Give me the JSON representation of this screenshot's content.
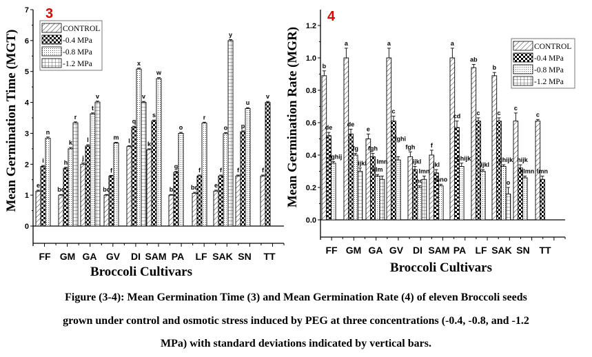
{
  "colors": {
    "panel_number": "#e00000",
    "ink": "#000000"
  },
  "chart_data": [
    {
      "type": "bar",
      "panel_number": "3",
      "title": "",
      "xlabel": "Broccoli Cultivars",
      "ylabel": "Mean Germination Time (MGT)",
      "ylim": [
        0,
        7
      ],
      "yticks": [
        "0",
        "1",
        "2",
        "3",
        "4",
        "5",
        "6",
        "7"
      ],
      "categories": [
        "FF",
        "GM",
        "GA",
        "GV",
        "DI",
        "SAM",
        "PA",
        "LF",
        "SAK",
        "SN",
        "TT"
      ],
      "legend": [
        "CONTROL",
        "-0.4 MPa",
        "-0.8 MPa",
        "-1.2 MPa"
      ],
      "legend_position": "top-left",
      "series": [
        {
          "name": "CONTROL",
          "values": [
            1.13,
            1.0,
            2.0,
            1.0,
            2.57,
            2.47,
            1.0,
            1.06,
            1.13,
            1.62,
            1.62
          ],
          "letters": [
            "e",
            "bc",
            "j",
            "bc",
            "l",
            "k",
            "b",
            "bd",
            "e",
            "f",
            "f"
          ],
          "sd": [
            0.03,
            0.02,
            0.04,
            0.02,
            0.03,
            0.03,
            0.02,
            0.03,
            0.03,
            0.03,
            0.03
          ]
        },
        {
          "name": "-0.4 MPa",
          "values": [
            1.93,
            1.87,
            2.59,
            1.62,
            3.2,
            3.4,
            1.74,
            1.62,
            1.62,
            3.05,
            4.0
          ],
          "letters": [
            "i",
            "h",
            "l",
            "f",
            "q",
            "s",
            "g",
            "f",
            "f",
            "p",
            "v"
          ],
          "sd": [
            0.03,
            0.03,
            0.04,
            0.02,
            0.03,
            0.03,
            0.03,
            0.03,
            0.03,
            0.03,
            0.03
          ]
        },
        {
          "name": "-0.8 MPa",
          "values": [
            2.84,
            2.5,
            3.63,
            2.69,
            5.08,
            4.77,
            3.0,
            3.33,
            2.99,
            3.8,
            null
          ],
          "letters": [
            "n",
            "k",
            "t",
            "m",
            "x",
            "w",
            "o",
            "r",
            "o",
            "u",
            null
          ],
          "sd": [
            0.04,
            0.04,
            0.03,
            0.02,
            0.03,
            0.03,
            0.03,
            0.03,
            0.03,
            0.03,
            null
          ]
        },
        {
          "name": "-1.2 MPa",
          "values": [
            null,
            3.34,
            4.01,
            null,
            4.0,
            null,
            null,
            null,
            6.0,
            null,
            null
          ],
          "letters": [
            null,
            "r",
            "v",
            null,
            "v",
            null,
            null,
            null,
            "y",
            null,
            null
          ],
          "sd": [
            null,
            0.03,
            0.03,
            null,
            0.03,
            null,
            null,
            null,
            0.03,
            null,
            null
          ]
        }
      ]
    },
    {
      "type": "bar",
      "panel_number": "4",
      "title": "",
      "xlabel": "Broccoli Cultivars",
      "ylabel": "Mean Germination Rate (MGR)",
      "ylim": [
        0,
        1.2
      ],
      "yticks": [
        "0.0",
        "0.2",
        "0.4",
        "0.6",
        "0.8",
        "1.0",
        "1.2"
      ],
      "categories": [
        "FF",
        "GM",
        "GA",
        "GV",
        "DI",
        "SAM",
        "PA",
        "LF",
        "SAK",
        "SN",
        "TT"
      ],
      "legend": [
        "CONTROL",
        "-0.4 MPa",
        "-0.8 MPa",
        "-1.2 MPa"
      ],
      "legend_position": "top-right",
      "series": [
        {
          "name": "CONTROL",
          "values": [
            0.89,
            1.0,
            0.5,
            1.0,
            0.39,
            0.4,
            1.0,
            0.94,
            0.89,
            0.61,
            0.61
          ],
          "letters": [
            "b",
            "a",
            "e",
            "a",
            "fgh",
            "f",
            "a",
            "ab",
            "b",
            "c",
            "c"
          ],
          "sd": [
            0.03,
            0.06,
            0.03,
            0.06,
            0.03,
            0.03,
            0.06,
            0.02,
            0.02,
            0.05,
            0.01
          ]
        },
        {
          "name": "-0.4 MPa",
          "values": [
            0.52,
            0.53,
            0.39,
            0.61,
            0.31,
            0.29,
            0.57,
            0.61,
            0.61,
            0.32,
            0.25
          ],
          "letters": [
            "de",
            "de",
            "fgh",
            "c",
            "ijkl",
            "jkl",
            "cd",
            "c",
            "c",
            "hijk",
            "lmn"
          ],
          "sd": [
            0.02,
            0.03,
            0.02,
            0.03,
            0.02,
            0.02,
            0.04,
            0.02,
            0.02,
            0.02,
            0.02
          ]
        },
        {
          "name": "-0.8 MPa",
          "values": [
            0.35,
            0.4,
            0.27,
            0.37,
            0.2,
            0.21,
            0.33,
            0.3,
            0.33,
            0.26,
            null
          ],
          "letters": [
            "fghij",
            "fg",
            "klm",
            "fghi",
            "no",
            "mno",
            "ghijk",
            "ijkl",
            "ghijk",
            "klmn",
            null
          ],
          "sd": [
            0.01,
            0.01,
            0.01,
            0.02,
            0.01,
            0.01,
            0.02,
            0.01,
            0.01,
            0.01,
            null
          ]
        },
        {
          "name": "-1.2 MPa",
          "values": [
            null,
            0.3,
            0.25,
            null,
            0.25,
            null,
            null,
            null,
            0.16,
            null,
            null
          ],
          "letters": [
            null,
            "ijkl",
            "lmn",
            null,
            "lmn",
            null,
            null,
            null,
            "o",
            null,
            null
          ],
          "sd": [
            null,
            0.02,
            0.02,
            null,
            0.02,
            null,
            null,
            null,
            0.04,
            null,
            null
          ]
        }
      ]
    }
  ],
  "caption": {
    "line1": "Figure (3-4): Mean Germination Time (3) and Mean Germination Rate (4) of eleven Broccoli seeds",
    "line2": "grown under control and osmotic stress induced by PEG at three concentrations (-0.4, -0.8, and -1.2",
    "line3": "MPa) with standard deviations indicated by vertical bars."
  }
}
